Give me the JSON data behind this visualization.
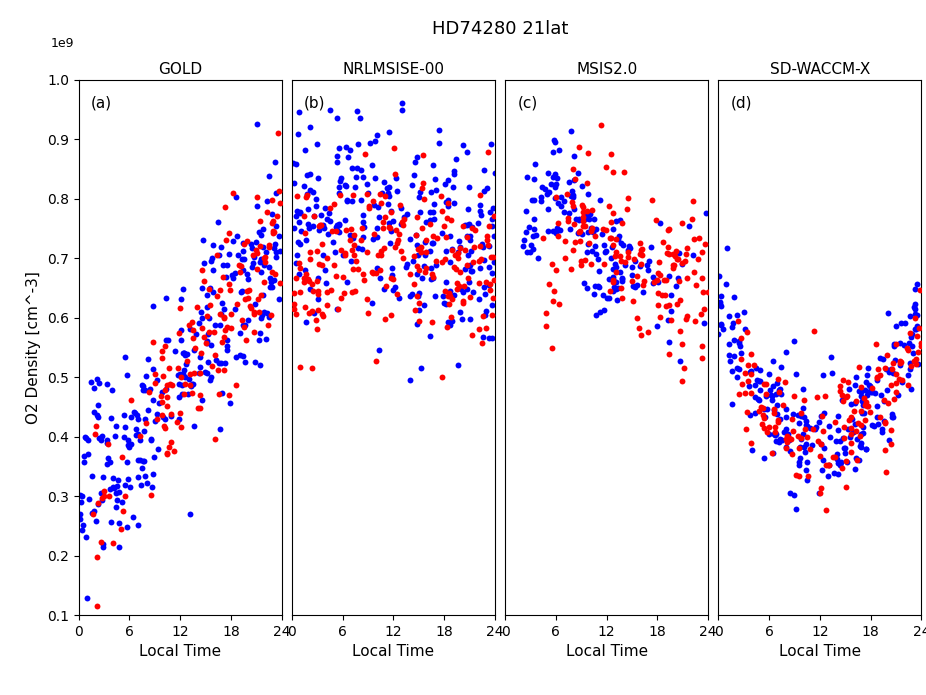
{
  "title": "HD74280 21lat",
  "panels": [
    "GOLD",
    "NRLMSISE-00",
    "MSIS2.0",
    "SD-WACCM-X"
  ],
  "panel_labels": [
    "(a)",
    "(b)",
    "(c)",
    "(d)"
  ],
  "ylabel": "O2 Density [cm^-3]",
  "xlabel": "Local Time",
  "ylim": [
    0.1,
    1.0
  ],
  "yticks": [
    0.1,
    0.2,
    0.3,
    0.4,
    0.5,
    0.6,
    0.7,
    0.8,
    0.9,
    1.0
  ],
  "xlim": [
    0,
    24
  ],
  "xticks": [
    0,
    6,
    12,
    18,
    24
  ],
  "blue_color": "#0000FF",
  "red_color": "#FF0000",
  "dot_size": 18,
  "random_seed": 42
}
